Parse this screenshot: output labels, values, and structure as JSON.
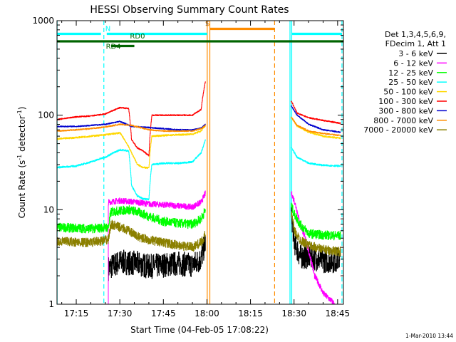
{
  "chart_data": {
    "type": "line",
    "title": "HESSI Observing Summary Count Rates",
    "xlabel": "Start Time (04-Feb-05 17:08:22)",
    "ylabel_main": "Count Rate (s",
    "ylabel_sup1": "-1",
    "ylabel_mid": " detector",
    "ylabel_sup2": "-1",
    "ylabel_end": ")",
    "footer": "1-Mar-2010 13:44",
    "x_unit": "minutes since 17:00 UT",
    "xlim": [
      8.37,
      107
    ],
    "ylim": [
      1,
      1000
    ],
    "yscale": "log",
    "x_ticks": [
      {
        "value": 15,
        "label": "17:15"
      },
      {
        "value": 30,
        "label": "17:30"
      },
      {
        "value": 45,
        "label": "17:45"
      },
      {
        "value": 60,
        "label": "18:00"
      },
      {
        "value": 75,
        "label": "18:15"
      },
      {
        "value": 90,
        "label": "18:30"
      },
      {
        "value": 105,
        "label": "18:45"
      }
    ],
    "y_ticks": [
      {
        "value": 1,
        "label": "1"
      },
      {
        "value": 10,
        "label": "10"
      },
      {
        "value": 100,
        "label": "100"
      },
      {
        "value": 1000,
        "label": "1000"
      }
    ],
    "legend": {
      "header": [
        "Det 1,3,4,5,6,9,",
        "FDecim 1, Att 1"
      ],
      "placement": "right"
    },
    "series": [
      {
        "name": "3 - 6 keV",
        "color": "#000000",
        "seg1": [
          [
            8.4,
            1
          ],
          [
            26,
            1
          ],
          [
            26,
            2.4
          ],
          [
            30,
            2.8
          ],
          [
            36,
            2.7
          ],
          [
            40,
            2.5
          ],
          [
            45,
            2.6
          ],
          [
            50,
            2.7
          ],
          [
            55,
            2.6
          ],
          [
            58,
            3.0
          ],
          [
            59.5,
            4.5
          ]
        ],
        "seg2": [
          [
            89,
            9
          ],
          [
            90,
            4.6
          ],
          [
            92,
            3.2
          ],
          [
            95,
            3.2
          ],
          [
            100,
            2.9
          ],
          [
            104,
            2.9
          ],
          [
            106,
            3.1
          ]
        ],
        "jitter": 0.3
      },
      {
        "name": "6 - 12 keV",
        "color": "#ff00ff",
        "seg1": [
          [
            8.4,
            1
          ],
          [
            26,
            1
          ],
          [
            26,
            12
          ],
          [
            30,
            12.5
          ],
          [
            36,
            12
          ],
          [
            40,
            11.5
          ],
          [
            45,
            11.3
          ],
          [
            50,
            11.0
          ],
          [
            55,
            10.7
          ],
          [
            58,
            12
          ],
          [
            59.5,
            15
          ]
        ],
        "seg2": [
          [
            89,
            15
          ],
          [
            90,
            12.5
          ],
          [
            92,
            7
          ],
          [
            95,
            3.6
          ],
          [
            97,
            2
          ],
          [
            100,
            1.3
          ],
          [
            104,
            1
          ]
        ],
        "jitter": 0.07
      },
      {
        "name": "12 - 25 keV",
        "color": "#00ff00",
        "seg1": [
          [
            8.4,
            6.5
          ],
          [
            20,
            6.3
          ],
          [
            26,
            6.5
          ],
          [
            27,
            9.5
          ],
          [
            33,
            10
          ],
          [
            36,
            9.5
          ],
          [
            40,
            8.5
          ],
          [
            45,
            7.5
          ],
          [
            50,
            7.2
          ],
          [
            55,
            7.0
          ],
          [
            58,
            8
          ],
          [
            59.5,
            10
          ]
        ],
        "seg2": [
          [
            89,
            11
          ],
          [
            90,
            9
          ],
          [
            92,
            7
          ],
          [
            95,
            5.6
          ],
          [
            100,
            5.4
          ],
          [
            106,
            5.3
          ]
        ],
        "jitter": 0.11
      },
      {
        "name": "25 - 50 keV",
        "color": "#00ffff",
        "seg1": [
          [
            8.4,
            28
          ],
          [
            15,
            29
          ],
          [
            20,
            32
          ],
          [
            25,
            36
          ],
          [
            30,
            43
          ],
          [
            33,
            42
          ],
          [
            34,
            18
          ],
          [
            36,
            14
          ],
          [
            38,
            13
          ],
          [
            40,
            12.8
          ],
          [
            41,
            30
          ],
          [
            45,
            31
          ],
          [
            50,
            31
          ],
          [
            55,
            32
          ],
          [
            58,
            40
          ],
          [
            59.5,
            55
          ]
        ],
        "seg2": [
          [
            89,
            45
          ],
          [
            91,
            36
          ],
          [
            95,
            31
          ],
          [
            100,
            29.5
          ],
          [
            106,
            29
          ]
        ],
        "jitter": 0.02
      },
      {
        "name": "50 - 100 keV",
        "color": "#ffd700",
        "seg1": [
          [
            8.4,
            56
          ],
          [
            15,
            58
          ],
          [
            20,
            60
          ],
          [
            25,
            62
          ],
          [
            30,
            65
          ],
          [
            34,
            40
          ],
          [
            36,
            30
          ],
          [
            38,
            28
          ],
          [
            40,
            27.5
          ],
          [
            41,
            60
          ],
          [
            45,
            61
          ],
          [
            50,
            62
          ],
          [
            55,
            63
          ],
          [
            58,
            68
          ],
          [
            59.5,
            78
          ]
        ],
        "seg2": [
          [
            89,
            95
          ],
          [
            91,
            77
          ],
          [
            95,
            66
          ],
          [
            100,
            60
          ],
          [
            106,
            57
          ]
        ],
        "jitter": 0.02
      },
      {
        "name": "100 - 300 keV",
        "color": "#ff0000",
        "seg1": [
          [
            8.4,
            90
          ],
          [
            15,
            96
          ],
          [
            20,
            98
          ],
          [
            25,
            103
          ],
          [
            30,
            120
          ],
          [
            33,
            118
          ],
          [
            34,
            55
          ],
          [
            36,
            45
          ],
          [
            38,
            42
          ],
          [
            40,
            37
          ],
          [
            41,
            100
          ],
          [
            45,
            100
          ],
          [
            50,
            100
          ],
          [
            55,
            100
          ],
          [
            58,
            115
          ],
          [
            59.5,
            230
          ]
        ],
        "seg2": [
          [
            89,
            140
          ],
          [
            91,
            105
          ],
          [
            95,
            94
          ],
          [
            100,
            88
          ],
          [
            106,
            82
          ]
        ],
        "jitter": 0.015
      },
      {
        "name": "300 - 800 keV",
        "color": "#0000cd",
        "seg1": [
          [
            8.4,
            76
          ],
          [
            15,
            76
          ],
          [
            20,
            78
          ],
          [
            25,
            80
          ],
          [
            30,
            86
          ],
          [
            34,
            76
          ],
          [
            40,
            74
          ],
          [
            45,
            72
          ],
          [
            50,
            70
          ],
          [
            55,
            70
          ],
          [
            58,
            73
          ],
          [
            59.5,
            80
          ]
        ],
        "seg2": [
          [
            89,
            125
          ],
          [
            91,
            100
          ],
          [
            95,
            80
          ],
          [
            100,
            70
          ],
          [
            106,
            66
          ]
        ],
        "jitter": 0.015
      },
      {
        "name": "800 - 7000 keV",
        "color": "#ff8c00",
        "seg1": [
          [
            8.4,
            68
          ],
          [
            15,
            70
          ],
          [
            20,
            72
          ],
          [
            25,
            75
          ],
          [
            30,
            80
          ],
          [
            34,
            78
          ],
          [
            40,
            70
          ],
          [
            45,
            68
          ],
          [
            50,
            68
          ],
          [
            55,
            68
          ],
          [
            58,
            72
          ],
          [
            59.5,
            78
          ]
        ],
        "seg2": [
          [
            89,
            95
          ],
          [
            91,
            78
          ],
          [
            95,
            68
          ],
          [
            100,
            64
          ],
          [
            106,
            61
          ]
        ],
        "jitter": 0.015
      },
      {
        "name": "7000 - 20000 keV",
        "color": "#8b8000",
        "seg1": [
          [
            8.4,
            4.6
          ],
          [
            20,
            4.5
          ],
          [
            26,
            4.8
          ],
          [
            27,
            7
          ],
          [
            33,
            6
          ],
          [
            36,
            5.2
          ],
          [
            40,
            4.8
          ],
          [
            45,
            4.5
          ],
          [
            50,
            4.2
          ],
          [
            55,
            4.0
          ],
          [
            58,
            4.5
          ],
          [
            59.5,
            5.5
          ]
        ],
        "seg2": [
          [
            89,
            9
          ],
          [
            90,
            6
          ],
          [
            92,
            4.8
          ],
          [
            95,
            4.2
          ],
          [
            100,
            3.8
          ],
          [
            106,
            3.6
          ]
        ],
        "jitter": 0.11
      }
    ],
    "vlines": [
      {
        "x": 8.4,
        "color": "#00ffff",
        "dash": false
      },
      {
        "x": 24.5,
        "color": "#00ffff",
        "dash": true
      },
      {
        "x": 60.1,
        "color": "#ff8c00",
        "dash": false
      },
      {
        "x": 61.0,
        "color": "#ff8c00",
        "dash": false
      },
      {
        "x": 83.3,
        "color": "#ff8c00",
        "dash": true
      },
      {
        "x": 88.6,
        "color": "#00ffff",
        "dash": false
      },
      {
        "x": 89.2,
        "color": "#00ffff",
        "dash": false
      },
      {
        "x": 106.5,
        "color": "#00ffff",
        "dash": true
      }
    ],
    "flag_bars": [
      {
        "label": "N",
        "color": "#00ffff",
        "segments": [
          [
            8.37,
            23.5
          ],
          [
            25.5,
            60.1
          ],
          [
            89.2,
            106.5
          ]
        ],
        "y": 47.5,
        "label_x": 25.0
      },
      {
        "label": "S",
        "color": "#ff8c00",
        "segments": [
          [
            61,
            83.3
          ]
        ],
        "y": 40.5,
        "label_x": 59.4
      },
      {
        "label": "RD0",
        "color": "#006400",
        "segments": [
          [
            8.37,
            107
          ]
        ],
        "y": 58,
        "label_x": 33.5
      },
      {
        "label": "RD4",
        "color": "#006400",
        "segments": [
          [
            27,
            35
          ]
        ],
        "y": 64.5,
        "label_x": 25.2
      }
    ]
  }
}
